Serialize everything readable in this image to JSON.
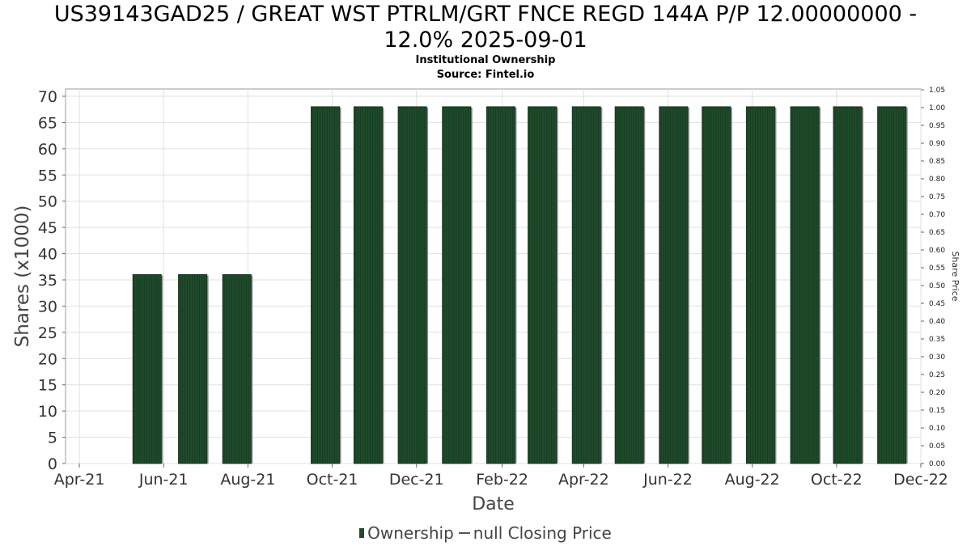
{
  "chart_data": {
    "type": "bar",
    "title_line1": "US39143GAD25 / GREAT WST PTRLM/GRT FNCE REGD 144A P/P 12.00000000 -",
    "title_line2": "12.0% 2025-09-01",
    "subtitle": "Institutional Ownership",
    "source": "Source: Fintel.io",
    "xlabel": "Date",
    "ylabel": "Shares (x1000)",
    "y2label": "Share Price",
    "x_ticks": [
      "Apr-21",
      "Jun-21",
      "Aug-21",
      "Oct-21",
      "Dec-21",
      "Feb-22",
      "Apr-22",
      "Jun-22",
      "Aug-22",
      "Oct-22",
      "Dec-22"
    ],
    "y_ticks": [
      "0",
      "5",
      "10",
      "15",
      "20",
      "25",
      "30",
      "35",
      "40",
      "45",
      "50",
      "55",
      "60",
      "65",
      "70"
    ],
    "y2_ticks": [
      "0.00",
      "0.05",
      "0.10",
      "0.15",
      "0.20",
      "0.25",
      "0.30",
      "0.35",
      "0.40",
      "0.45",
      "0.50",
      "0.55",
      "0.60",
      "0.65",
      "0.70",
      "0.75",
      "0.80",
      "0.85",
      "0.90",
      "0.95",
      "1.00",
      "1.05"
    ],
    "ylim": [
      0,
      70
    ],
    "y2lim": [
      0,
      1.05
    ],
    "x_range": [
      "2021-03-22",
      "2022-12-01"
    ],
    "series": [
      {
        "name": "Ownership",
        "color": "#1f4b2b",
        "points": [
          {
            "date": "2021-05-20",
            "value": 36
          },
          {
            "date": "2021-06-22",
            "value": 36
          },
          {
            "date": "2021-07-24",
            "value": 36
          },
          {
            "date": "2021-09-26",
            "value": 68
          },
          {
            "date": "2021-10-27",
            "value": 68
          },
          {
            "date": "2021-11-28",
            "value": 68
          },
          {
            "date": "2021-12-30",
            "value": 68
          },
          {
            "date": "2022-01-31",
            "value": 68
          },
          {
            "date": "2022-03-02",
            "value": 68
          },
          {
            "date": "2022-04-03",
            "value": 68
          },
          {
            "date": "2022-05-04",
            "value": 68
          },
          {
            "date": "2022-06-05",
            "value": 68
          },
          {
            "date": "2022-07-06",
            "value": 68
          },
          {
            "date": "2022-08-07",
            "value": 68
          },
          {
            "date": "2022-09-08",
            "value": 68
          },
          {
            "date": "2022-10-09",
            "value": 68
          },
          {
            "date": "2022-11-10",
            "value": 68
          }
        ]
      }
    ],
    "legend": [
      {
        "label": "Ownership",
        "kind": "bar"
      },
      {
        "label": "null Closing Price",
        "kind": "line"
      }
    ],
    "legend_position": "bottom",
    "grid": true
  }
}
